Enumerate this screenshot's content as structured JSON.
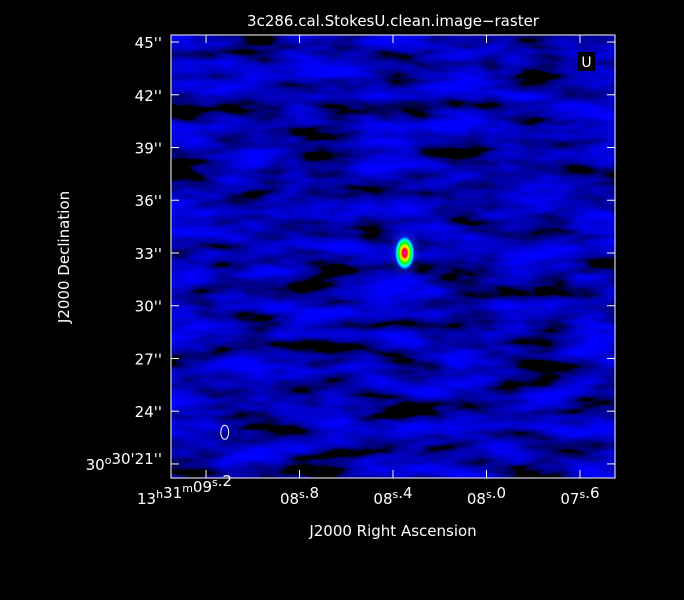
{
  "chart_data": {
    "type": "heatmap",
    "title": "3c286.cal.StokesU.clean.image−raster",
    "xlabel": "J2000 Right Ascension",
    "ylabel": "J2000 Declination",
    "stokes_label": "U",
    "colormap": [
      "#000000",
      "#0000ff",
      "#00ffff",
      "#00ff00",
      "#ffff00",
      "#ff0000",
      "#ff00ff"
    ],
    "x_axis": {
      "unit": "seconds of RA (13h31m)",
      "range": [
        9.35,
        7.45
      ],
      "reversed": true,
      "ticks": [
        {
          "value": 9.2,
          "label": "13h31m09s.2",
          "parts": {
            "hours": "13",
            "minutes": "31",
            "seconds": "09",
            "fraction": ".2"
          }
        },
        {
          "value": 8.8,
          "label": "08s.8",
          "parts": {
            "seconds": "08",
            "fraction": ".8"
          }
        },
        {
          "value": 8.4,
          "label": "08s.4",
          "parts": {
            "seconds": "08",
            "fraction": ".4"
          }
        },
        {
          "value": 8.0,
          "label": "08s.0",
          "parts": {
            "seconds": "08",
            "fraction": ".0"
          }
        },
        {
          "value": 7.6,
          "label": "07s.6",
          "parts": {
            "seconds": "07",
            "fraction": ".6"
          }
        }
      ]
    },
    "y_axis": {
      "unit": "arcsec of Dec (30°30')",
      "range": [
        20.2,
        45.4
      ],
      "ticks": [
        {
          "value": 21,
          "label": "30°30'21''",
          "parts": {
            "deg": "30",
            "arcmin": "30",
            "arcsec": "21"
          }
        },
        {
          "value": 24,
          "label": "24''"
        },
        {
          "value": 27,
          "label": "27''"
        },
        {
          "value": 30,
          "label": "30''"
        },
        {
          "value": 33,
          "label": "33''"
        },
        {
          "value": 36,
          "label": "36''"
        },
        {
          "value": 39,
          "label": "39''"
        },
        {
          "value": 42,
          "label": "42''"
        },
        {
          "value": 45,
          "label": "45''"
        }
      ]
    },
    "source": {
      "ra_seconds": 8.35,
      "dec_arcsec": 33.0,
      "peak_intensity": 1.0,
      "background_intensity": 0.45
    },
    "beam": {
      "ra_seconds": 9.12,
      "dec_arcsec": 22.8
    },
    "grid": false,
    "legend": "none"
  }
}
